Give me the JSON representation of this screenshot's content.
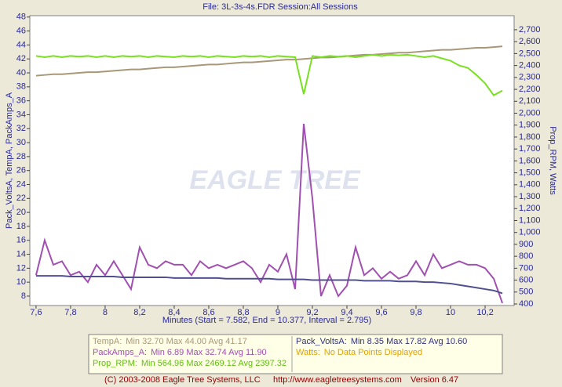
{
  "title": "File: 3L-3s-4s.FDR   Session:All Sessions",
  "footer": [
    "(C) 2003-2008 Eagle Tree Systems, LLC",
    "http://www.eagletreesystems.com",
    "Version 6.47"
  ],
  "watermark": "EAGLE TREE",
  "chart_data": {
    "type": "line",
    "xlabel": "Minutes (Start = 7.582,  End = 10.377,  Interval =  2.795)",
    "ylabel": "Pack_VoltsA, TempA, PackAmps_A",
    "y2label": "Prop_RPM, Watts",
    "xlim": [
      7.564,
      10.368
    ],
    "ylim": [
      6.65,
      48.2
    ],
    "y2lim": [
      387,
      2818
    ],
    "xticks": [
      {
        "value": 7.6,
        "label": "7,6"
      },
      {
        "value": 7.8,
        "label": "7,8"
      },
      8,
      {
        "value": 8.2,
        "label": "8,2"
      },
      {
        "value": 8.4,
        "label": "8,4"
      },
      {
        "value": 8.6,
        "label": "8,6"
      },
      {
        "value": 8.8,
        "label": "8,8"
      },
      9,
      {
        "value": 9.2,
        "label": "9,2"
      },
      {
        "value": 9.4,
        "label": "9,4"
      },
      {
        "value": 9.6,
        "label": "9,6"
      },
      {
        "value": 9.8,
        "label": "9,8"
      },
      10,
      {
        "value": 10.2,
        "label": "10,2"
      }
    ],
    "yticks": [
      8,
      10,
      12,
      14,
      16,
      18,
      20,
      22,
      24,
      26,
      28,
      30,
      32,
      34,
      36,
      38,
      40,
      42,
      44,
      46,
      48
    ],
    "y2ticks": [
      400,
      500,
      600,
      700,
      800,
      900,
      {
        "value": 1000,
        "label": "1,000"
      },
      {
        "value": 1100,
        "label": "1,100"
      },
      {
        "value": 1200,
        "label": "1,200"
      },
      {
        "value": 1300,
        "label": "1,300"
      },
      {
        "value": 1400,
        "label": "1,400"
      },
      {
        "value": 1500,
        "label": "1,500"
      },
      {
        "value": 1600,
        "label": "1,600"
      },
      {
        "value": 1700,
        "label": "1,700"
      },
      {
        "value": 1800,
        "label": "1,800"
      },
      {
        "value": 1900,
        "label": "1,900"
      },
      {
        "value": 2000,
        "label": "2,000"
      },
      {
        "value": 2100,
        "label": "2,100"
      },
      {
        "value": 2200,
        "label": "2,200"
      },
      {
        "value": 2300,
        "label": "2,300"
      },
      {
        "value": 2400,
        "label": "2,400"
      },
      {
        "value": 2500,
        "label": "2,500"
      },
      {
        "value": 2600,
        "label": "2,600"
      },
      {
        "value": 2700,
        "label": "2,700"
      }
    ],
    "x": [
      7.6,
      7.65,
      7.7,
      7.75,
      7.8,
      7.85,
      7.9,
      7.95,
      8.0,
      8.05,
      8.1,
      8.15,
      8.2,
      8.25,
      8.3,
      8.35,
      8.4,
      8.45,
      8.5,
      8.55,
      8.6,
      8.65,
      8.7,
      8.75,
      8.8,
      8.85,
      8.9,
      8.95,
      9.0,
      9.05,
      9.1,
      9.15,
      9.2,
      9.25,
      9.3,
      9.35,
      9.4,
      9.45,
      9.5,
      9.55,
      9.6,
      9.65,
      9.7,
      9.75,
      9.8,
      9.85,
      9.9,
      9.95,
      10.0,
      10.05,
      10.1,
      10.15,
      10.2,
      10.25,
      10.3
    ],
    "series": [
      {
        "name": "TempA:",
        "stats": "Min 32.70   Max 44.00   Avg 41.17",
        "color": "#a89878",
        "legend_color": "#a89878",
        "values": [
          39.6,
          39.7,
          39.8,
          39.8,
          39.9,
          40.0,
          40.1,
          40.1,
          40.2,
          40.3,
          40.4,
          40.5,
          40.5,
          40.6,
          40.7,
          40.8,
          40.8,
          40.9,
          41.0,
          41.1,
          41.2,
          41.2,
          41.3,
          41.4,
          41.5,
          41.5,
          41.6,
          41.7,
          41.8,
          41.9,
          41.9,
          42.0,
          42.1,
          42.2,
          42.2,
          42.3,
          42.4,
          42.5,
          42.6,
          42.6,
          42.7,
          42.8,
          42.9,
          42.9,
          43.0,
          43.1,
          43.2,
          43.3,
          43.3,
          43.4,
          43.5,
          43.6,
          43.6,
          43.7,
          43.8
        ]
      },
      {
        "name": "PackAmps_A:",
        "stats": "Min 6.89   Max 32.74   Avg 11.90",
        "color": "#a050b0",
        "legend_color": "#a050b0",
        "values": [
          11,
          16,
          12.5,
          13,
          11,
          11.5,
          10,
          12.5,
          11,
          13,
          11,
          9,
          15,
          12.5,
          12,
          13,
          12.5,
          12.5,
          11,
          13,
          12,
          12.5,
          12,
          12.5,
          13,
          12,
          10,
          12.5,
          11.5,
          14,
          9,
          32.7,
          22,
          8,
          11,
          8,
          9.5,
          15,
          11,
          12,
          10.5,
          11.5,
          10.5,
          11,
          13,
          11,
          14,
          12,
          12.5,
          13,
          12.5,
          12.5,
          12,
          10.5,
          7
        ]
      },
      {
        "name": "Prop_RPM:",
        "stats": "Min 564.96   Max 2469.12   Avg 2397.32",
        "color": "#78e020",
        "legend_color": "#60c010",
        "axis": "y2",
        "values": [
          2480,
          2470,
          2480,
          2470,
          2480,
          2475,
          2480,
          2470,
          2480,
          2470,
          2480,
          2475,
          2480,
          2470,
          2480,
          2475,
          2470,
          2480,
          2475,
          2480,
          2470,
          2480,
          2475,
          2470,
          2480,
          2475,
          2480,
          2470,
          2480,
          2475,
          2470,
          2160,
          2480,
          2470,
          2480,
          2475,
          2480,
          2470,
          2480,
          2490,
          2480,
          2490,
          2485,
          2490,
          2480,
          2470,
          2480,
          2460,
          2440,
          2400,
          2380,
          2320,
          2250,
          2150,
          2190
        ]
      },
      {
        "name": "Pack_VoltsA:",
        "stats": "Min 8.35   Max 17.82   Avg 10.60",
        "color": "#505090",
        "legend_color": "#303080",
        "values": [
          10.9,
          10.9,
          10.9,
          10.9,
          10.8,
          10.8,
          10.8,
          10.8,
          10.8,
          10.8,
          10.7,
          10.7,
          10.7,
          10.7,
          10.7,
          10.7,
          10.6,
          10.6,
          10.6,
          10.6,
          10.6,
          10.6,
          10.5,
          10.5,
          10.5,
          10.5,
          10.5,
          10.5,
          10.4,
          10.4,
          10.4,
          10.4,
          10.3,
          10.3,
          10.3,
          10.3,
          10.3,
          10.3,
          10.2,
          10.2,
          10.2,
          10.2,
          10.1,
          10.1,
          10.1,
          10.0,
          10.0,
          9.9,
          9.8,
          9.6,
          9.4,
          9.2,
          9.0,
          8.8,
          8.4
        ]
      }
    ],
    "legend_notes": [
      {
        "name": "Watts:",
        "text": "No Data Points Displayed",
        "color": "#e0a000"
      }
    ]
  }
}
